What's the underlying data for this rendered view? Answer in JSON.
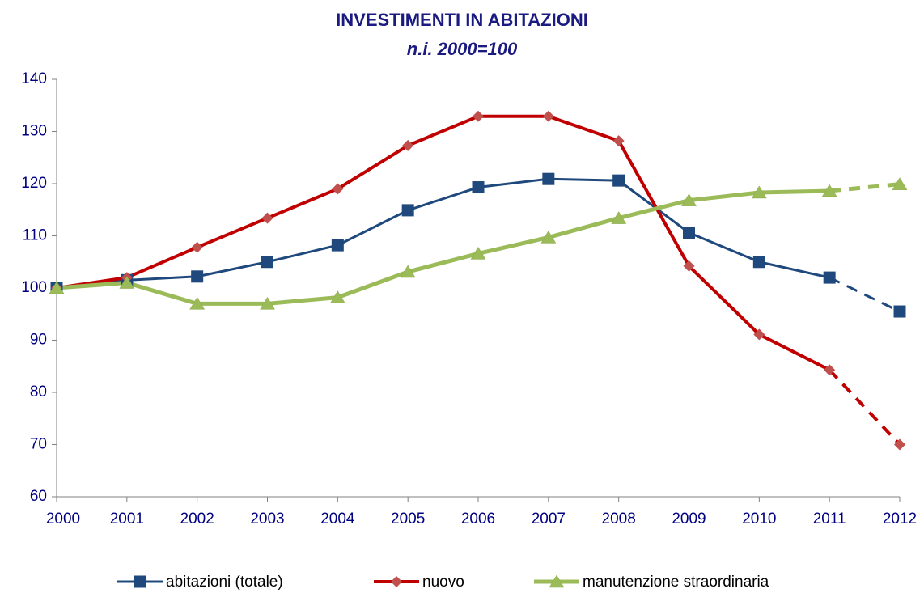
{
  "chart_data": {
    "type": "line",
    "title": "INVESTIMENTI IN ABITAZIONI",
    "subtitle": "n.i. 2000=100",
    "categories": [
      "2000",
      "2001",
      "2002",
      "2003",
      "2004",
      "2005",
      "2006",
      "2007",
      "2008",
      "2009",
      "2010",
      "2011",
      "2012"
    ],
    "series": [
      {
        "name": "abitazioni (totale)",
        "color": "#1f497d",
        "marker_color": "#1f497d",
        "marker": "square",
        "values": [
          100,
          101.5,
          102.2,
          105,
          108.2,
          114.9,
          119.3,
          120.9,
          120.6,
          110.6,
          105,
          102,
          95.5
        ]
      },
      {
        "name": "nuovo",
        "color": "#c00000",
        "marker_color": "#c0504d",
        "marker": "diamond",
        "values": [
          100,
          102,
          107.8,
          113.4,
          119,
          127.3,
          132.9,
          132.9,
          128.2,
          104.2,
          91.1,
          84.3,
          70
        ]
      },
      {
        "name": "manutenzione straordinaria",
        "color": "#9bbb59",
        "marker_color": "#9bbb59",
        "marker": "triangle",
        "values": [
          100,
          101,
          97,
          97,
          98.2,
          103.1,
          106.6,
          109.7,
          113.4,
          116.8,
          118.3,
          118.6,
          119.9
        ]
      }
    ],
    "ylim": [
      60,
      140
    ],
    "yticks": [
      60,
      70,
      80,
      90,
      100,
      110,
      120,
      130,
      140
    ],
    "dashed_last_segment": true,
    "grid": false,
    "legend": "bottom"
  }
}
